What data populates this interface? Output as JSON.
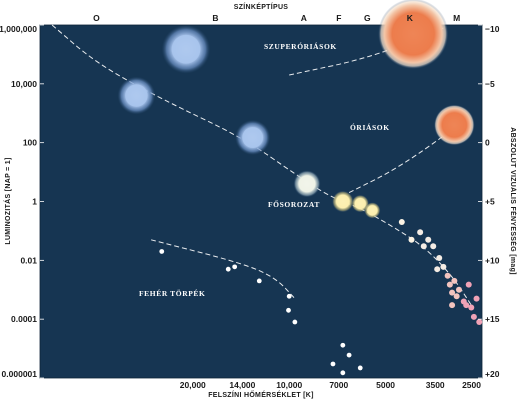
{
  "chart_data": {
    "type": "scatter",
    "title": "",
    "top_axis": {
      "label": "SZÍNKÉPTÍPUS",
      "classes": [
        {
          "label": "O",
          "temperature": 40000
        },
        {
          "label": "B",
          "temperature": 17000
        },
        {
          "label": "A",
          "temperature": 9000
        },
        {
          "label": "F",
          "temperature": 7000
        },
        {
          "label": "G",
          "temperature": 5700
        },
        {
          "label": "K",
          "temperature": 4200
        },
        {
          "label": "M",
          "temperature": 3000
        }
      ]
    },
    "x_axis": {
      "label": "FELSZÍNI HŐMÉRSÉKLET [K]",
      "scale": "log",
      "direction": "reversed",
      "range": [
        60000,
        2500
      ],
      "ticks": [
        {
          "value": 20000,
          "label": "20,000"
        },
        {
          "value": 14000,
          "label": "14,000"
        },
        {
          "value": 10000,
          "label": "10,000"
        },
        {
          "value": 7000,
          "label": "7000"
        },
        {
          "value": 5000,
          "label": "5000"
        },
        {
          "value": 3500,
          "label": "3500"
        },
        {
          "value": 2500,
          "label": "2500"
        }
      ]
    },
    "y_axis": {
      "label": "LUMINOZITÁS [NAP = 1]",
      "scale": "log",
      "range": [
        1e-06,
        1000000
      ],
      "ticks": [
        {
          "value": 1000000,
          "label": "1,000,000"
        },
        {
          "value": 10000,
          "label": "10,000"
        },
        {
          "value": 100,
          "label": "100"
        },
        {
          "value": 1,
          "label": "1"
        },
        {
          "value": 0.01,
          "label": "0.01"
        },
        {
          "value": 0.0001,
          "label": "0.0001"
        },
        {
          "value": 1e-06,
          "label": "0.000001"
        }
      ]
    },
    "y2_axis": {
      "label": "ABSZOLÚT VIZUÁLIS FÉNYESSÉG [mag]",
      "ticks": [
        {
          "value": -10,
          "label": "−10"
        },
        {
          "value": -5,
          "label": "−5"
        },
        {
          "value": 0,
          "label": "0"
        },
        {
          "value": 5,
          "label": "+5"
        },
        {
          "value": 10,
          "label": "+10"
        },
        {
          "value": 15,
          "label": "+15"
        },
        {
          "value": 20,
          "label": "+20"
        }
      ]
    },
    "region_labels": {
      "supergiants": "SZUPERÓRIÁSOK",
      "giants": "ÓRIÁSOK",
      "main_sequence": "FŐSOROZAT",
      "white_dwarfs": "FEHÉR TÖRPÉK"
    },
    "colors": {
      "background": "#163552",
      "blue_star": "#a8c4ec",
      "white_star": "#eef2e6",
      "yellow_star": "#fbefae",
      "orange_star": "#ec7c4c",
      "red_dwarf": "#f0a2b6",
      "white_dwarf": "#ffffff"
    },
    "series": [
      {
        "name": "bright_stars",
        "points": [
          {
            "t": 21000,
            "l": 150000,
            "size": 18,
            "color": "blue_star"
          },
          {
            "t": 30000,
            "l": 4000,
            "size": 14,
            "color": "blue_star"
          },
          {
            "t": 13000,
            "l": 150,
            "size": 13,
            "color": "blue_star"
          },
          {
            "t": 8800,
            "l": 4,
            "size": 10,
            "color": "white_star"
          },
          {
            "t": 6800,
            "l": 1,
            "size": 8,
            "color": "yellow_star"
          },
          {
            "t": 6000,
            "l": 0.85,
            "size": 6.5,
            "color": "yellow_star"
          },
          {
            "t": 5500,
            "l": 0.5,
            "size": 6,
            "color": "yellow_star"
          },
          {
            "t": 4100,
            "l": 500000,
            "size": 26,
            "color": "orange_star"
          },
          {
            "t": 3050,
            "l": 400,
            "size": 15,
            "color": "orange_star"
          }
        ]
      },
      {
        "name": "main_sequence_dwarfs",
        "points": [
          {
            "t": 4450,
            "l": 0.2
          },
          {
            "t": 4150,
            "l": 0.05
          },
          {
            "t": 3900,
            "l": 0.09
          },
          {
            "t": 3800,
            "l": 0.03
          },
          {
            "t": 3680,
            "l": 0.05
          },
          {
            "t": 3550,
            "l": 0.03
          },
          {
            "t": 3400,
            "l": 0.012
          },
          {
            "t": 3300,
            "l": 0.006
          },
          {
            "t": 3200,
            "l": 0.003
          },
          {
            "t": 3450,
            "l": 0.005
          },
          {
            "t": 3150,
            "l": 0.0015
          },
          {
            "t": 3050,
            "l": 0.002
          },
          {
            "t": 2950,
            "l": 0.001
          },
          {
            "t": 3000,
            "l": 0.0006
          },
          {
            "t": 2850,
            "l": 0.0004
          },
          {
            "t": 2750,
            "l": 0.0015
          },
          {
            "t": 2800,
            "l": 0.0003
          },
          {
            "t": 2700,
            "l": 0.00025
          },
          {
            "t": 2650,
            "l": 0.00012
          },
          {
            "t": 2550,
            "l": 8e-05
          },
          {
            "t": 3100,
            "l": 0.0003
          },
          {
            "t": 2600,
            "l": 0.0005
          },
          {
            "t": 3100,
            "l": 0.0008
          }
        ]
      },
      {
        "name": "white_dwarf_stars",
        "points": [
          {
            "t": 25000,
            "l": 0.02
          },
          {
            "t": 15500,
            "l": 0.005
          },
          {
            "t": 14800,
            "l": 0.006
          },
          {
            "t": 12400,
            "l": 0.002
          },
          {
            "t": 10000,
            "l": 0.0006
          },
          {
            "t": 10050,
            "l": 0.0002
          },
          {
            "t": 9600,
            "l": 8e-05
          },
          {
            "t": 6800,
            "l": 1.3e-05
          },
          {
            "t": 6500,
            "l": 6e-06
          },
          {
            "t": 7300,
            "l": 3e-06
          },
          {
            "t": 6800,
            "l": 1.5e-06
          },
          {
            "t": 6000,
            "l": 2.2e-06
          },
          {
            "t": 5600,
            "l": 8e-07
          },
          {
            "t": 5800,
            "l": 4e-07
          },
          {
            "t": 6300,
            "l": 5e-07
          }
        ]
      }
    ],
    "guide_lines": [
      {
        "region": "main_sequence",
        "points": [
          [
            55000,
            1000000
          ],
          [
            40000,
            50000
          ],
          [
            25000,
            3000
          ],
          [
            14000,
            150
          ],
          [
            9500,
            8
          ],
          [
            7500,
            1.5
          ],
          [
            6000,
            0.6
          ],
          [
            4800,
            0.15
          ],
          [
            3800,
            0.03
          ],
          [
            3100,
            0.003
          ],
          [
            2700,
            0.0003
          ]
        ]
      },
      {
        "region": "supergiants",
        "points": [
          [
            10000,
            20000
          ],
          [
            5500,
            80000
          ],
          [
            3300,
            800000
          ]
        ]
      },
      {
        "region": "giants",
        "points": [
          [
            6500,
            2
          ],
          [
            4500,
            15
          ],
          [
            2800,
            600
          ]
        ]
      },
      {
        "region": "white_dwarfs",
        "points": [
          [
            27000,
            0.05
          ],
          [
            14000,
            0.008
          ],
          [
            11000,
            0.0025
          ],
          [
            9600,
            0.0005
          ]
        ]
      }
    ]
  }
}
